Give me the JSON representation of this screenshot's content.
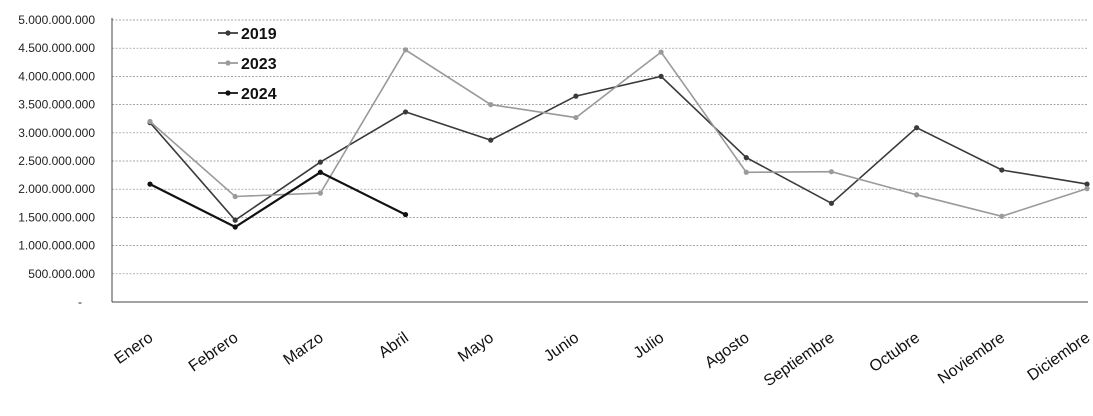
{
  "chart_data": {
    "type": "line",
    "title": "",
    "xlabel": "",
    "ylabel": "",
    "ylim": [
      0,
      5000000000
    ],
    "yticks": [
      {
        "value": 0,
        "label": "-"
      },
      {
        "value": 500000000,
        "label": "500.000.000"
      },
      {
        "value": 1000000000,
        "label": "1.000.000.000"
      },
      {
        "value": 1500000000,
        "label": "1.500.000.000"
      },
      {
        "value": 2000000000,
        "label": "2.000.000.000"
      },
      {
        "value": 2500000000,
        "label": "2.500.000.000"
      },
      {
        "value": 3000000000,
        "label": "3.000.000.000"
      },
      {
        "value": 3500000000,
        "label": "3.500.000.000"
      },
      {
        "value": 4000000000,
        "label": "4.000.000.000"
      },
      {
        "value": 4500000000,
        "label": "4.500.000.000"
      },
      {
        "value": 5000000000,
        "label": "5.000.000.000"
      }
    ],
    "categories": [
      "Enero",
      "Febrero",
      "Marzo",
      "Abril",
      "Mayo",
      "Junio",
      "Julio",
      "Agosto",
      "Septiembre",
      "Octubre",
      "Noviembre",
      "Diciembre"
    ],
    "grid": true,
    "legend_position": "top-left",
    "series": [
      {
        "name": "2019",
        "color": "#3a3a3a",
        "values": [
          3180000000,
          1450000000,
          2480000000,
          3370000000,
          2870000000,
          3650000000,
          4000000000,
          2560000000,
          1750000000,
          3090000000,
          2340000000,
          2090000000
        ]
      },
      {
        "name": "2023",
        "color": "#9a9a9a",
        "values": [
          3200000000,
          1870000000,
          1930000000,
          4470000000,
          3500000000,
          3270000000,
          4430000000,
          2300000000,
          2310000000,
          1900000000,
          1520000000,
          2010000000
        ]
      },
      {
        "name": "2024",
        "color": "#111111",
        "values": [
          2090000000,
          1330000000,
          2300000000,
          1550000000,
          null,
          null,
          null,
          null,
          null,
          null,
          null,
          null
        ]
      }
    ]
  }
}
